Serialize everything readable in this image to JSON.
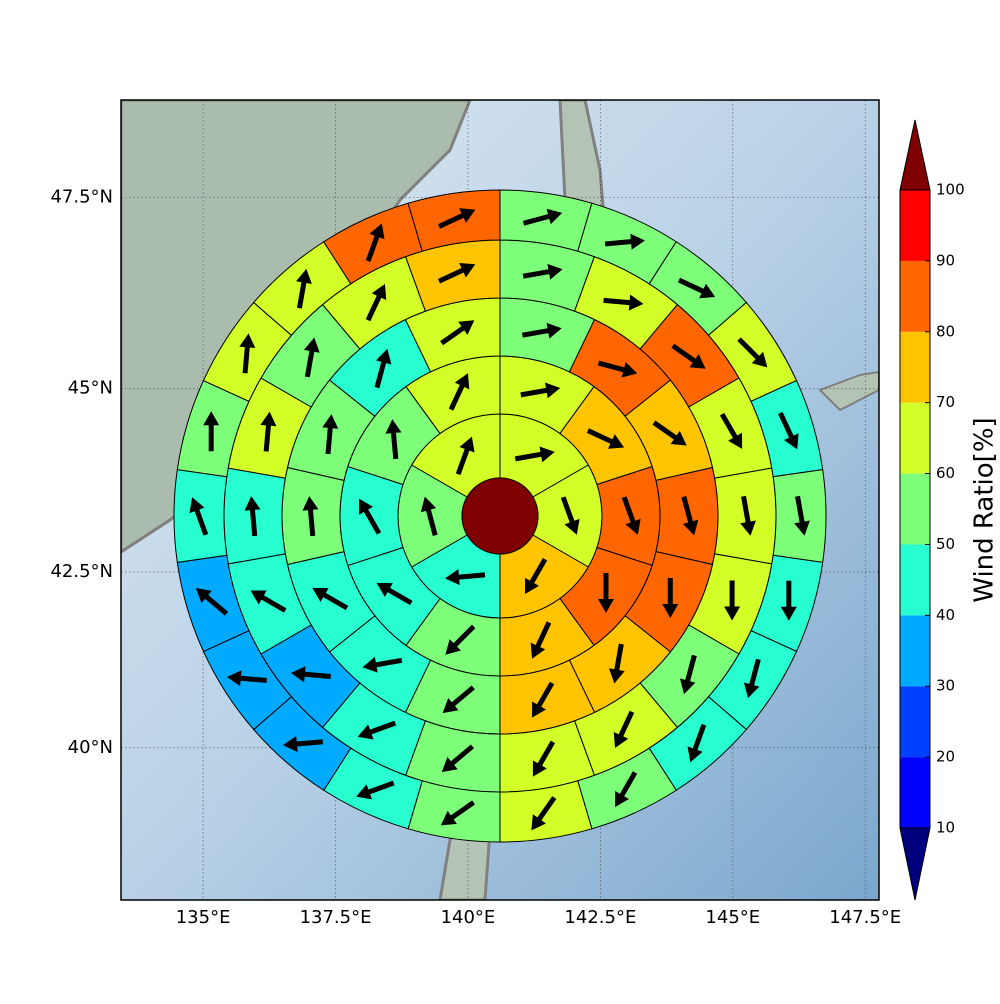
{
  "chart_data": {
    "type": "polar-wind-map",
    "projection": "mercator",
    "xlim": [
      133.45,
      147.76
    ],
    "ylim": [
      37.76,
      48.73
    ],
    "xticks": [
      {
        "value": 135,
        "label": "135°E"
      },
      {
        "value": 137.5,
        "label": "137.5°E"
      },
      {
        "value": 140,
        "label": "140°E"
      },
      {
        "value": 142.5,
        "label": "142.5°E"
      },
      {
        "value": 145,
        "label": "145°E"
      },
      {
        "value": 147.5,
        "label": "147.5°E"
      }
    ],
    "yticks": [
      {
        "value": 40,
        "label": "40°N"
      },
      {
        "value": 42.5,
        "label": "42.5°N"
      },
      {
        "value": 45,
        "label": "45°N"
      },
      {
        "value": 47.5,
        "label": "47.5°N"
      }
    ],
    "grid": true,
    "colorbar": {
      "label": "Wind Ratio[%]",
      "clim": [
        10,
        100
      ],
      "ticks": [
        10,
        20,
        30,
        40,
        50,
        60,
        70,
        80,
        90,
        100
      ],
      "extend": "both",
      "colors": [
        "#00007f",
        "#0000ff",
        "#0040ff",
        "#00aaff",
        "#27ffd0",
        "#7dff7a",
        "#d2ff27",
        "#ffc400",
        "#ff6600",
        "#ff0000",
        "#7f0000"
      ]
    },
    "center": {
      "value": 105
    },
    "rings": [
      {
        "values": [
          65,
          65,
          75,
          45,
          55,
          65
        ],
        "directions": [
          80,
          160,
          210,
          265,
          345,
          20
        ]
      },
      {
        "values": [
          65,
          75,
          85,
          85,
          75,
          55,
          45,
          45,
          55,
          65
        ],
        "directions": [
          80,
          115,
          160,
          180,
          205,
          225,
          300,
          330,
          355,
          25
        ]
      },
      {
        "values": [
          55,
          85,
          75,
          85,
          85,
          75,
          75,
          55,
          45,
          45,
          55,
          55,
          45,
          65
        ],
        "directions": [
          80,
          105,
          125,
          165,
          180,
          190,
          210,
          230,
          260,
          300,
          355,
          5,
          15,
          55
        ]
      },
      {
        "values": [
          55,
          65,
          85,
          65,
          65,
          65,
          55,
          65,
          65,
          55,
          45,
          35,
          45,
          45,
          65,
          55,
          65,
          75
        ],
        "directions": [
          80,
          95,
          125,
          150,
          170,
          180,
          195,
          205,
          210,
          230,
          250,
          275,
          300,
          355,
          5,
          10,
          25,
          65
        ]
      },
      {
        "values": [
          55,
          55,
          55,
          65,
          45,
          55,
          45,
          45,
          45,
          55,
          65,
          55,
          45,
          35,
          35,
          35,
          45,
          55,
          65,
          65,
          85,
          85
        ],
        "directions": [
          75,
          85,
          115,
          135,
          155,
          170,
          180,
          195,
          200,
          210,
          215,
          235,
          250,
          265,
          275,
          310,
          340,
          0,
          5,
          10,
          20,
          65
        ]
      }
    ]
  }
}
